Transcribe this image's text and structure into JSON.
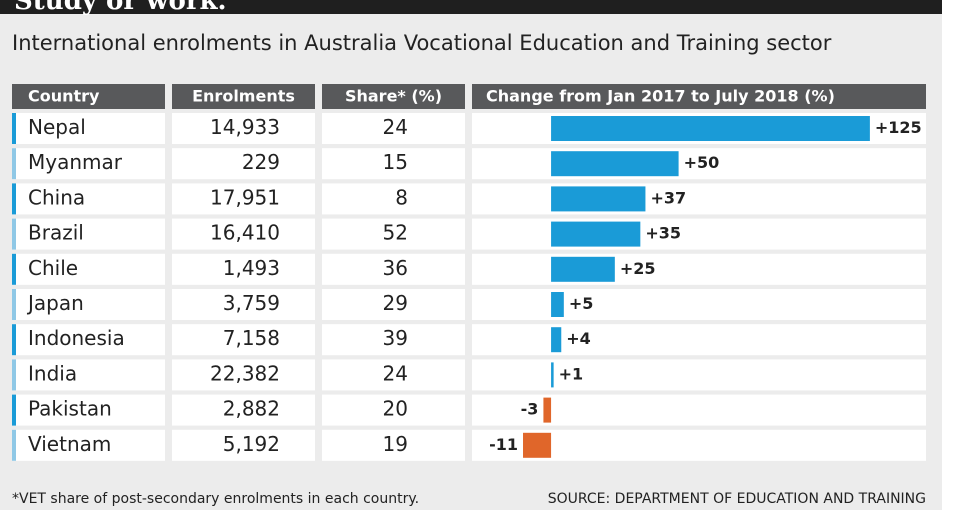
{
  "header": {
    "kicker": "Study or work."
  },
  "chart_data": {
    "type": "bar",
    "orientation": "horizontal",
    "title": "International enrolments in Australia Vocational Education and Training sector",
    "columns": [
      "Country",
      "Enrolments",
      "Share* (%)",
      "Change from Jan 2017 to July 2018 (%)"
    ],
    "categories": [
      "Nepal",
      "Myanmar",
      "China",
      "Brazil",
      "Chile",
      "Japan",
      "Indonesia",
      "India",
      "Pakistan",
      "Vietnam"
    ],
    "enrolments": [
      "14,933",
      "229",
      "17,951",
      "16,410",
      "1,493",
      "3,759",
      "7,158",
      "22,382",
      "2,882",
      "5,192"
    ],
    "share": [
      24,
      15,
      8,
      52,
      36,
      29,
      39,
      24,
      20,
      19
    ],
    "series": [
      {
        "name": "Change from Jan 2017 to July 2018 (%)",
        "color": "#1a9bd7",
        "negative_color": "#e0662a",
        "values": [
          125,
          50,
          37,
          35,
          25,
          5,
          4,
          1,
          -3,
          -11
        ],
        "value_labels": [
          "+125",
          "+50",
          "+37",
          "+35",
          "+25",
          "+5",
          "+4",
          "+1",
          "-3",
          "-11"
        ]
      }
    ],
    "xlim": [
      -31,
      147
    ],
    "footnote": "*VET share of post-secondary enrolments in each country.",
    "source": "SOURCE: DEPARTMENT OF EDUCATION AND TRAINING"
  }
}
